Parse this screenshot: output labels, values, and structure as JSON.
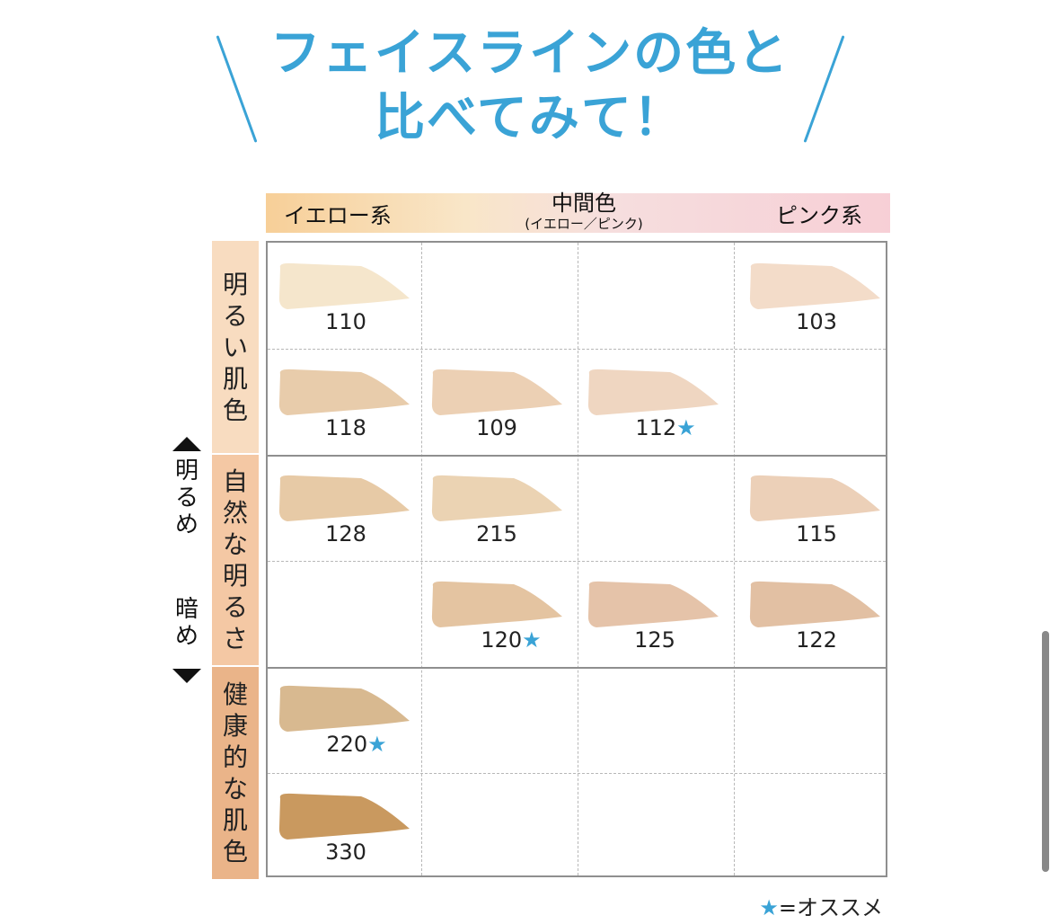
{
  "title": {
    "line1": "フェイスラインの色と",
    "line2": "比べてみて！"
  },
  "columns": {
    "yellow": "イエロー系",
    "middle": "中間色",
    "middle_sub": "(イエロー／ピンク)",
    "pink": "ピンク系"
  },
  "rows": {
    "bright": [
      "明",
      "る",
      "い",
      "肌",
      "色"
    ],
    "natural": [
      "自",
      "然",
      "な",
      "明",
      "る",
      "さ"
    ],
    "healthy": [
      "健",
      "康",
      "的",
      "な",
      "肌",
      "色"
    ]
  },
  "axis": {
    "bright": [
      "明",
      "る",
      "め"
    ],
    "dark": [
      "暗",
      "め"
    ]
  },
  "shades": [
    {
      "code": "110",
      "star": "",
      "color": "#f5e6cc"
    },
    {
      "code": "103",
      "star": "",
      "color": "#f3dcc9"
    },
    {
      "code": "118",
      "star": "",
      "color": "#e8ccab"
    },
    {
      "code": "109",
      "star": "",
      "color": "#ecd0b4"
    },
    {
      "code": "112",
      "star": "★",
      "color": "#efd6c1"
    },
    {
      "code": "128",
      "star": "",
      "color": "#e7caa6"
    },
    {
      "code": "215",
      "star": "",
      "color": "#ebd3b3"
    },
    {
      "code": "115",
      "star": "",
      "color": "#ecd0b8"
    },
    {
      "code": "120",
      "star": "★",
      "color": "#e4c4a1"
    },
    {
      "code": "125",
      "star": "",
      "color": "#e5c3a9"
    },
    {
      "code": "122",
      "star": "",
      "color": "#e2c0a3"
    },
    {
      "code": "220",
      "star": "★",
      "color": "#d8b990"
    },
    {
      "code": "330",
      "star": "",
      "color": "#c9995f"
    }
  ],
  "legend": {
    "star": "★",
    "text": "=オススメ"
  },
  "colors": {
    "accent": "#3aa3d6"
  }
}
